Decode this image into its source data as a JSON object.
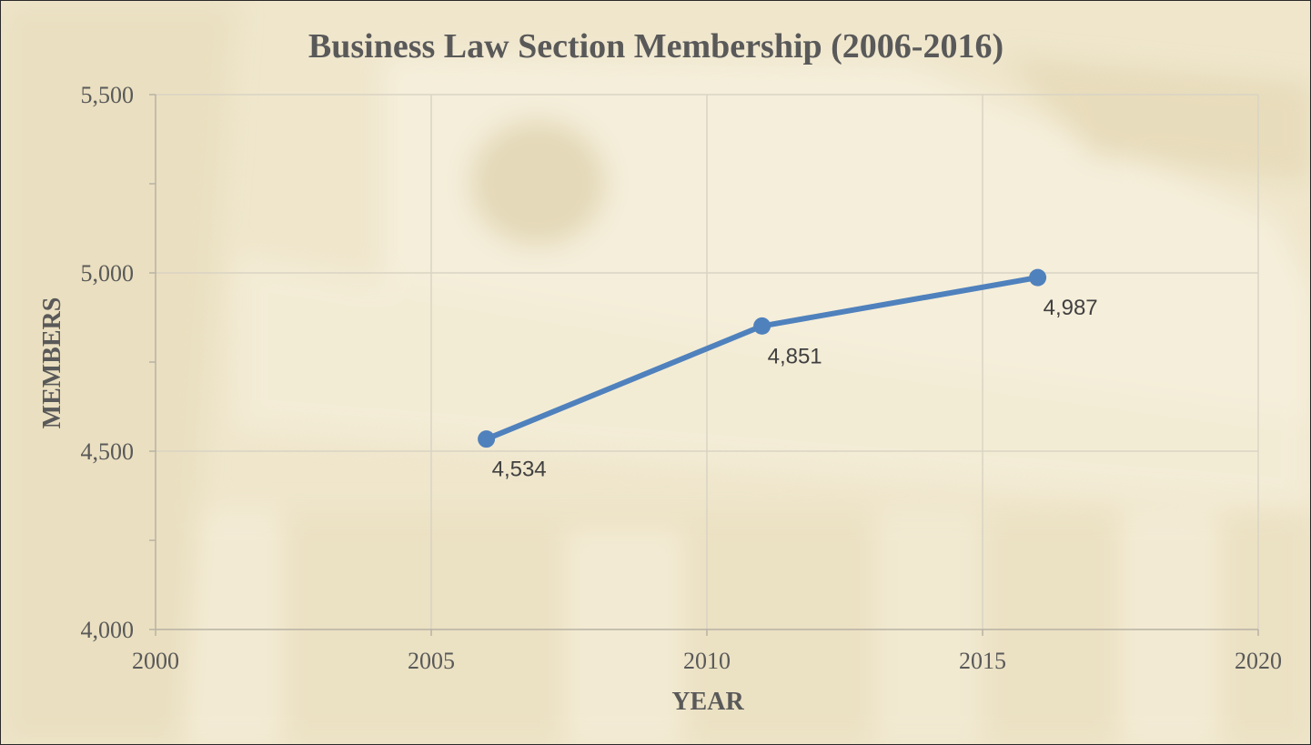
{
  "chart_data": {
    "type": "line",
    "title": "Business Law Section Membership (2006-2016)",
    "xlabel": "YEAR",
    "ylabel": "MEMBERS",
    "xlim": [
      2000,
      2020
    ],
    "ylim": [
      4000,
      5500
    ],
    "x_ticks": [
      2000,
      2005,
      2010,
      2015,
      2020
    ],
    "x_tick_labels": [
      "2000",
      "2005",
      "2010",
      "2015",
      "2020"
    ],
    "y_ticks": [
      4000,
      4500,
      5000,
      5500
    ],
    "y_tick_labels": [
      "4,000",
      "4,500",
      "5,000",
      "5,500"
    ],
    "grid": true,
    "series": [
      {
        "x": [
          2006,
          2011,
          2016
        ],
        "values": [
          4534,
          4851,
          4987
        ],
        "labels": [
          "4,534",
          "4,851",
          "4,987"
        ],
        "color": "#4f81bd"
      }
    ]
  },
  "colors": {
    "background": "#efe6cc",
    "gridline": "#d9d3c4",
    "axis": "#b8b2a4",
    "text": "#595959",
    "series": "#4f81bd"
  }
}
